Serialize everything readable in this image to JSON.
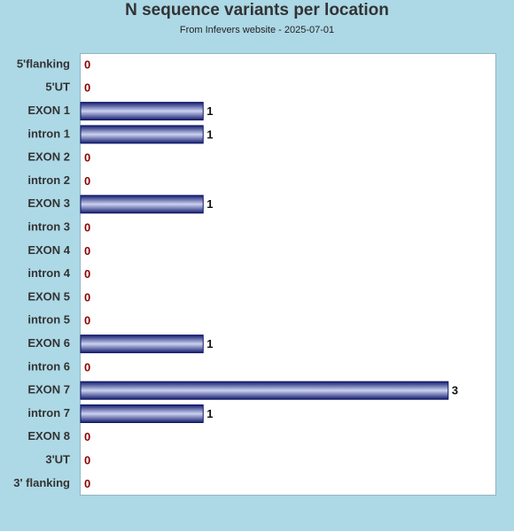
{
  "title": "N sequence variants per location",
  "subtitle": "From Infevers website - 2025-07-01",
  "chart_data": {
    "type": "bar",
    "orientation": "horizontal",
    "categories": [
      "5'flanking",
      "5'UT",
      "EXON 1",
      "intron 1",
      "EXON 2",
      "intron 2",
      "EXON 3",
      "intron 3",
      "EXON 4",
      "intron 4",
      "EXON 5",
      "intron 5",
      "EXON 6",
      "intron 6",
      "EXON 7",
      "intron 7",
      "EXON 8",
      "3'UT",
      "3' flanking"
    ],
    "values": [
      0,
      0,
      1,
      1,
      0,
      0,
      1,
      0,
      0,
      0,
      0,
      0,
      1,
      0,
      3,
      1,
      0,
      0,
      0
    ],
    "xlim": [
      0,
      3.4
    ],
    "colors": {
      "bar_dark": "#1f2a86",
      "bar_light": "#c9d0ee",
      "zero_label": "#8b0000",
      "value_label": "#111111"
    }
  }
}
